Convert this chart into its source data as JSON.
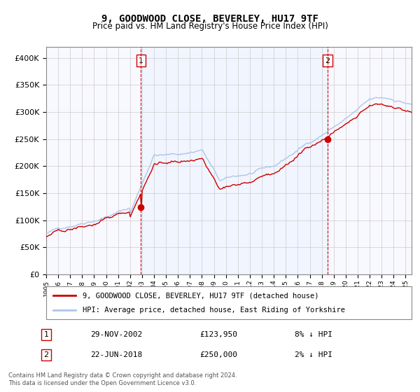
{
  "title": "9, GOODWOOD CLOSE, BEVERLEY, HU17 9TF",
  "subtitle": "Price paid vs. HM Land Registry's House Price Index (HPI)",
  "legend_line1": "9, GOODWOOD CLOSE, BEVERLEY, HU17 9TF (detached house)",
  "legend_line2": "HPI: Average price, detached house, East Riding of Yorkshire",
  "annotation1_label": "1",
  "annotation1_date": "29-NOV-2002",
  "annotation1_price": "£123,950",
  "annotation1_hpi": "8% ↓ HPI",
  "annotation1_year": 2002.91,
  "annotation1_value": 123950,
  "annotation2_label": "2",
  "annotation2_date": "22-JUN-2018",
  "annotation2_price": "£250,000",
  "annotation2_hpi": "2% ↓ HPI",
  "annotation2_year": 2018.47,
  "annotation2_value": 250000,
  "hpi_color": "#aec6e8",
  "price_color": "#cc0000",
  "background_color": "#ddeeff",
  "vline_color": "#cc0000",
  "dot_color": "#cc0000",
  "ylim": [
    0,
    420000
  ],
  "xlim_start": 1995,
  "xlim_end": 2025.5,
  "footer": "Contains HM Land Registry data © Crown copyright and database right 2024.\nThis data is licensed under the Open Government Licence v3.0."
}
